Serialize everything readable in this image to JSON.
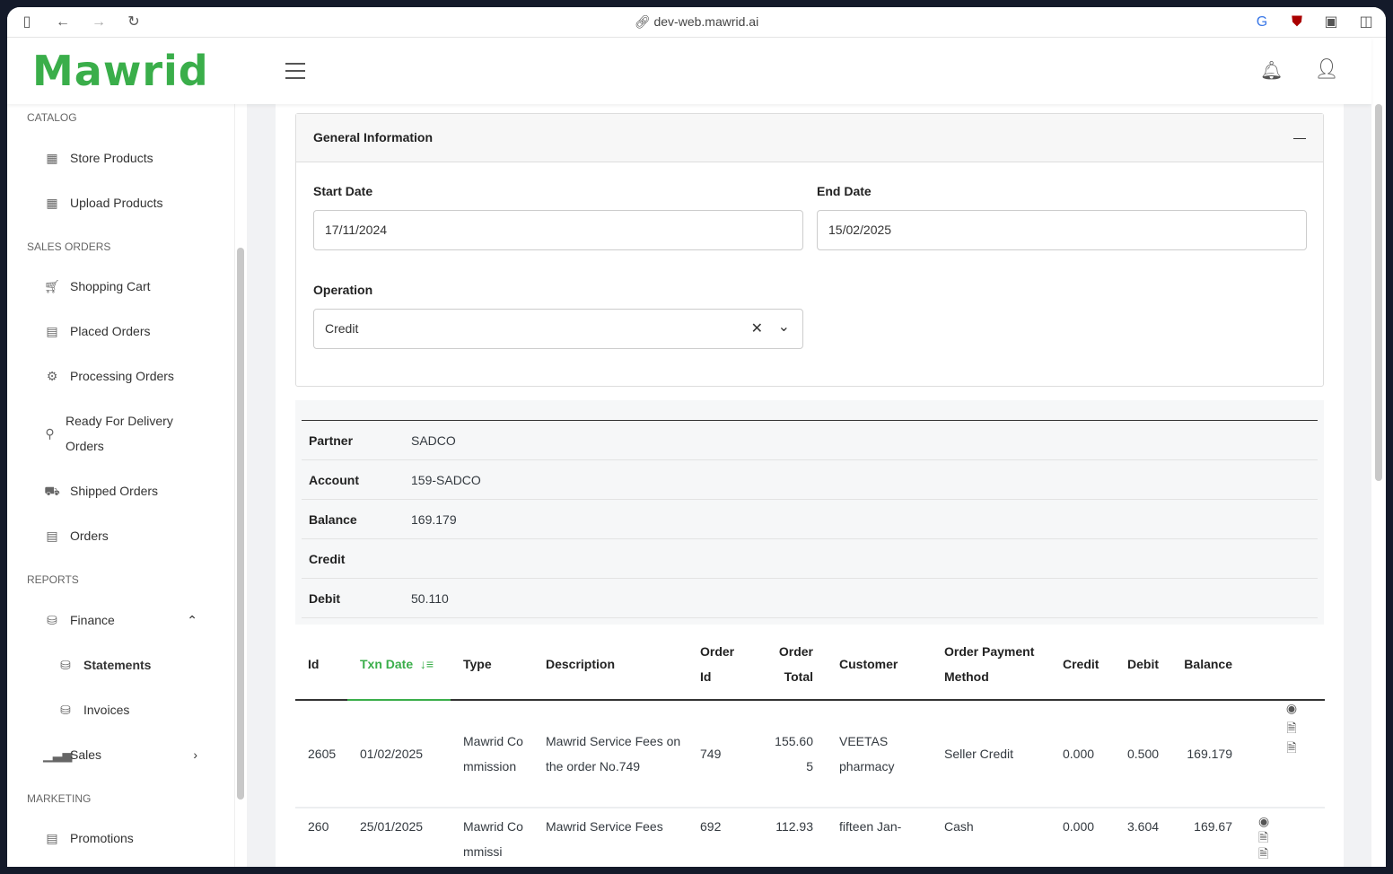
{
  "browser": {
    "url": "dev-web.mawrid.ai"
  },
  "app": {
    "logo": "Mawrid"
  },
  "sidebar": {
    "sections": [
      {
        "title": "CATALOG"
      },
      {
        "title": "SALES ORDERS"
      },
      {
        "title": "REPORTS"
      },
      {
        "title": "MARKETING"
      }
    ],
    "items": [
      {
        "label": "Store Products"
      },
      {
        "label": "Upload Products"
      },
      {
        "label": "Shopping Cart"
      },
      {
        "label": "Placed Orders"
      },
      {
        "label": "Processing Orders"
      },
      {
        "label": "Ready For Delivery Orders"
      },
      {
        "label": "Shipped Orders"
      },
      {
        "label": "Orders"
      },
      {
        "label": "Finance"
      },
      {
        "label": "Statements"
      },
      {
        "label": "Invoices"
      },
      {
        "label": "Sales"
      },
      {
        "label": "Promotions"
      }
    ]
  },
  "general": {
    "title": "General Information",
    "start_label": "Start Date",
    "start_value": "17/11/2024",
    "end_label": "End Date",
    "end_value": "15/02/2025",
    "operation_label": "Operation",
    "operation_value": "Credit"
  },
  "info": [
    {
      "label": "Partner",
      "value": "SADCO"
    },
    {
      "label": "Account",
      "value": "159-SADCO"
    },
    {
      "label": "Balance",
      "value": "169.179"
    },
    {
      "label": "Credit",
      "value": ""
    },
    {
      "label": "Debit",
      "value": "50.110"
    }
  ],
  "table": {
    "headers": [
      "Id",
      "Txn Date",
      "Type",
      "Description",
      "Order Id",
      "Order Total",
      "Customer",
      "Order Payment Method",
      "Credit",
      "Debit",
      "Balance"
    ],
    "rows": [
      [
        "2605",
        "01/02/2025",
        "Mawrid Commission",
        "Mawrid Service Fees on the order No.749",
        "749",
        "155.605",
        "VEETAS pharmacy",
        "Seller Credit",
        "0.000",
        "0.500",
        "169.179"
      ],
      [
        "260",
        "25/01/2025",
        "Mawrid Commissi",
        "Mawrid Service Fees",
        "692",
        "112.93",
        "fifteen Jan-",
        "Cash",
        "0.000",
        "3.604",
        "169.67"
      ]
    ]
  },
  "colors": {
    "brand": "#3aae4a",
    "active_sort": "#3aae4a"
  }
}
